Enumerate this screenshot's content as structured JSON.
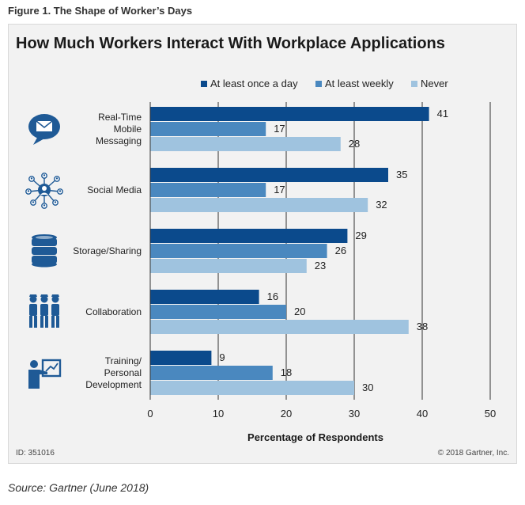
{
  "figure_caption": "Figure 1. The Shape of Worker’s Days",
  "footer": {
    "id": "ID: 351016",
    "copyright": "© 2018 Gartner, Inc."
  },
  "source": "Source: Gartner (June 2018)",
  "colors": {
    "at_least_daily": "#0b4a8c",
    "at_least_weekly": "#4a88bf",
    "never": "#9fc3df",
    "icon": "#1f5a96"
  },
  "chart_data": {
    "type": "bar",
    "orientation": "horizontal",
    "title": "How Much Workers Interact With Workplace Applications",
    "xlabel": "Percentage of Respondents",
    "ylabel": "",
    "xlim": [
      0,
      50
    ],
    "xticks": [
      "0",
      "10",
      "20",
      "30",
      "40",
      "50"
    ],
    "grid": "vertical",
    "legend_position": "top",
    "categories": [
      {
        "label_lines": [
          "Real-Time",
          "Mobile",
          "Messaging"
        ],
        "icon": "message-bubble-icon"
      },
      {
        "label_lines": [
          "Social Media"
        ],
        "icon": "social-network-icon"
      },
      {
        "label_lines": [
          "Storage/Sharing"
        ],
        "icon": "database-icon"
      },
      {
        "label_lines": [
          "Collaboration"
        ],
        "icon": "team-icon"
      },
      {
        "label_lines": [
          "Training/",
          "Personal",
          "Development"
        ],
        "icon": "presenter-icon"
      }
    ],
    "series": [
      {
        "name": "At least once a day",
        "color": "#0b4a8c",
        "values": [
          41,
          35,
          29,
          16,
          9
        ]
      },
      {
        "name": "At least weekly",
        "color": "#4a88bf",
        "values": [
          17,
          17,
          26,
          20,
          18
        ]
      },
      {
        "name": "Never",
        "color": "#9fc3df",
        "values": [
          28,
          32,
          23,
          38,
          30
        ]
      }
    ]
  }
}
